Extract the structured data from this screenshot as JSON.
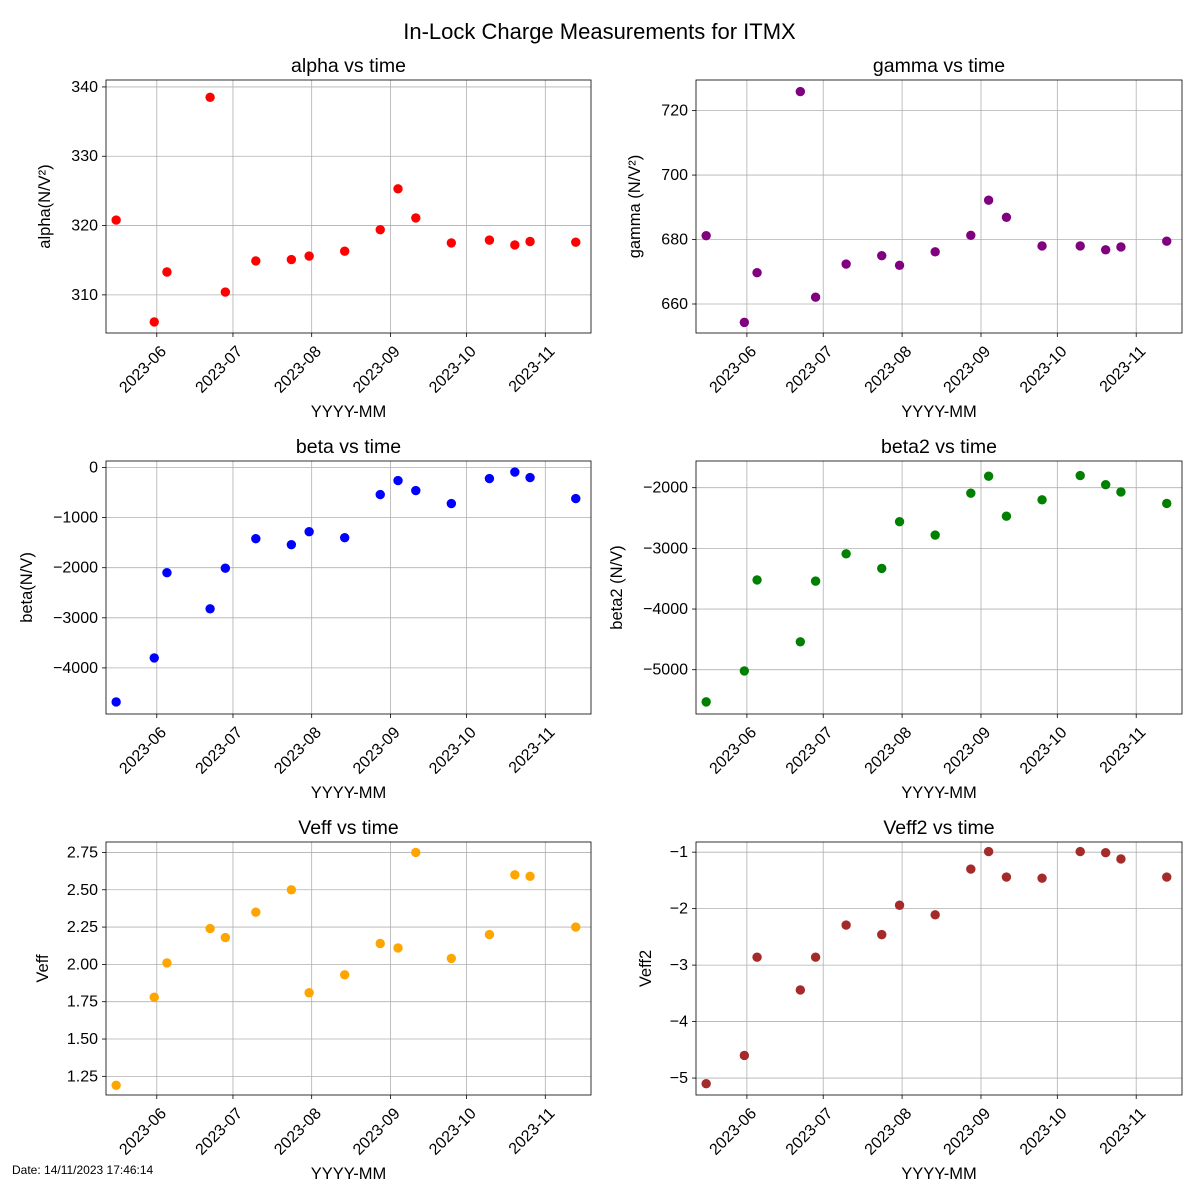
{
  "figure": {
    "title": "In-Lock Charge Measurements for ITMX",
    "date_stamp": "Date: 14/11/2023 17:46:14"
  },
  "chart_data": [
    {
      "type": "scatter",
      "title": "alpha vs time",
      "xlabel": "YYYY-MM",
      "ylabel": "alpha(N/V²)",
      "color": "#ff0000",
      "xlim": [
        "2023-05-12",
        "2023-11-19"
      ],
      "ylim": [
        304.5,
        341.0
      ],
      "xticks": [
        "2023-06",
        "2023-07",
        "2023-08",
        "2023-09",
        "2023-10",
        "2023-11"
      ],
      "yticks": [
        310,
        320,
        330,
        340
      ],
      "grid": true,
      "x": [
        "2023-05-16",
        "2023-05-31",
        "2023-06-05",
        "2023-06-22",
        "2023-06-28",
        "2023-07-10",
        "2023-07-24",
        "2023-07-31",
        "2023-08-14",
        "2023-08-28",
        "2023-09-04",
        "2023-09-11",
        "2023-09-25",
        "2023-10-10",
        "2023-10-20",
        "2023-10-26",
        "2023-11-13"
      ],
      "y": [
        320.8,
        306.1,
        313.3,
        338.5,
        310.4,
        314.9,
        315.1,
        315.6,
        316.3,
        319.4,
        325.3,
        321.1,
        317.5,
        317.9,
        317.2,
        317.7,
        317.6
      ]
    },
    {
      "type": "scatter",
      "title": "gamma vs time",
      "xlabel": "YYYY-MM",
      "ylabel": "gamma (N/V²)",
      "color": "#800080",
      "xlim": [
        "2023-05-12",
        "2023-11-19"
      ],
      "ylim": [
        651.0,
        729.5
      ],
      "xticks": [
        "2023-06",
        "2023-07",
        "2023-08",
        "2023-09",
        "2023-10",
        "2023-11"
      ],
      "yticks": [
        660,
        680,
        700,
        720
      ],
      "grid": true,
      "x": [
        "2023-05-16",
        "2023-05-31",
        "2023-06-05",
        "2023-06-22",
        "2023-06-28",
        "2023-07-10",
        "2023-07-24",
        "2023-07-31",
        "2023-08-14",
        "2023-08-28",
        "2023-09-04",
        "2023-09-11",
        "2023-09-25",
        "2023-10-10",
        "2023-10-20",
        "2023-10-26",
        "2023-11-13"
      ],
      "y": [
        681.2,
        654.3,
        669.7,
        725.9,
        662.1,
        672.4,
        675.0,
        672.0,
        676.2,
        681.3,
        692.2,
        686.9,
        678.0,
        678.0,
        676.8,
        677.7,
        679.5
      ]
    },
    {
      "type": "scatter",
      "title": "beta vs time",
      "xlabel": "YYYY-MM",
      "ylabel": "beta(N/V)",
      "color": "#0000ff",
      "xlim": [
        "2023-05-12",
        "2023-11-19"
      ],
      "ylim": [
        -4920,
        130
      ],
      "xticks": [
        "2023-06",
        "2023-07",
        "2023-08",
        "2023-09",
        "2023-10",
        "2023-11"
      ],
      "yticks": [
        -4000,
        -3000,
        -2000,
        -1000,
        0
      ],
      "grid": true,
      "x": [
        "2023-05-16",
        "2023-05-31",
        "2023-06-05",
        "2023-06-22",
        "2023-06-28",
        "2023-07-10",
        "2023-07-24",
        "2023-07-31",
        "2023-08-14",
        "2023-08-28",
        "2023-09-04",
        "2023-09-11",
        "2023-09-25",
        "2023-10-10",
        "2023-10-20",
        "2023-10-26",
        "2023-11-13"
      ],
      "y": [
        -4680,
        -3800,
        -2100,
        -2820,
        -2010,
        -1420,
        -1540,
        -1280,
        -1400,
        -540,
        -260,
        -460,
        -720,
        -220,
        -90,
        -200,
        -620
      ]
    },
    {
      "type": "scatter",
      "title": "beta2 vs time",
      "xlabel": "YYYY-MM",
      "ylabel": "beta2 (N/V)",
      "color": "#008000",
      "xlim": [
        "2023-05-12",
        "2023-11-19"
      ],
      "ylim": [
        -5730,
        -1560
      ],
      "xticks": [
        "2023-06",
        "2023-07",
        "2023-08",
        "2023-09",
        "2023-10",
        "2023-11"
      ],
      "yticks": [
        -5000,
        -4000,
        -3000,
        -2000
      ],
      "grid": true,
      "x": [
        "2023-05-16",
        "2023-05-31",
        "2023-06-05",
        "2023-06-22",
        "2023-06-28",
        "2023-07-10",
        "2023-07-24",
        "2023-07-31",
        "2023-08-14",
        "2023-08-28",
        "2023-09-04",
        "2023-09-11",
        "2023-09-25",
        "2023-10-10",
        "2023-10-20",
        "2023-10-26",
        "2023-11-13"
      ],
      "y": [
        -5530,
        -5020,
        -3520,
        -4540,
        -3540,
        -3090,
        -3330,
        -2560,
        -2780,
        -2090,
        -1810,
        -2470,
        -2200,
        -1800,
        -1950,
        -2070,
        -2260
      ]
    },
    {
      "type": "scatter",
      "title": "Veff vs time",
      "xlabel": "YYYY-MM",
      "ylabel": "Veff",
      "color": "#ffa500",
      "xlim": [
        "2023-05-12",
        "2023-11-19"
      ],
      "ylim": [
        1.125,
        2.82
      ],
      "xticks": [
        "2023-06",
        "2023-07",
        "2023-08",
        "2023-09",
        "2023-10",
        "2023-11"
      ],
      "yticks": [
        1.25,
        1.5,
        1.75,
        2.0,
        2.25,
        2.5,
        2.75
      ],
      "ytick_labels": [
        "1.25",
        "1.50",
        "1.75",
        "2.00",
        "2.25",
        "2.50",
        "2.75"
      ],
      "grid": true,
      "x": [
        "2023-05-16",
        "2023-05-31",
        "2023-06-05",
        "2023-06-22",
        "2023-06-28",
        "2023-07-10",
        "2023-07-24",
        "2023-07-31",
        "2023-08-14",
        "2023-08-28",
        "2023-09-04",
        "2023-09-11",
        "2023-09-25",
        "2023-10-10",
        "2023-10-20",
        "2023-10-26",
        "2023-11-13"
      ],
      "y": [
        1.19,
        1.78,
        2.01,
        2.24,
        2.18,
        2.35,
        2.5,
        1.81,
        1.93,
        2.14,
        2.11,
        2.75,
        2.04,
        2.2,
        2.6,
        2.59,
        2.25
      ]
    },
    {
      "type": "scatter",
      "title": "Veff2 vs time",
      "xlabel": "YYYY-MM",
      "ylabel": "Veff2",
      "color": "#a52a2a",
      "xlim": [
        "2023-05-12",
        "2023-11-19"
      ],
      "ylim": [
        -5.3,
        -0.82
      ],
      "xticks": [
        "2023-06",
        "2023-07",
        "2023-08",
        "2023-09",
        "2023-10",
        "2023-11"
      ],
      "yticks": [
        -5,
        -4,
        -3,
        -2,
        -1
      ],
      "grid": true,
      "x": [
        "2023-05-16",
        "2023-05-31",
        "2023-06-05",
        "2023-06-22",
        "2023-06-28",
        "2023-07-10",
        "2023-07-24",
        "2023-07-31",
        "2023-08-14",
        "2023-08-28",
        "2023-09-04",
        "2023-09-11",
        "2023-09-25",
        "2023-10-10",
        "2023-10-20",
        "2023-10-26",
        "2023-11-13"
      ],
      "y": [
        -5.1,
        -4.6,
        -2.86,
        -3.44,
        -2.86,
        -2.29,
        -2.46,
        -1.94,
        -2.11,
        -1.3,
        -0.99,
        -1.44,
        -1.46,
        -0.99,
        -1.01,
        -1.12,
        -1.44
      ]
    }
  ]
}
